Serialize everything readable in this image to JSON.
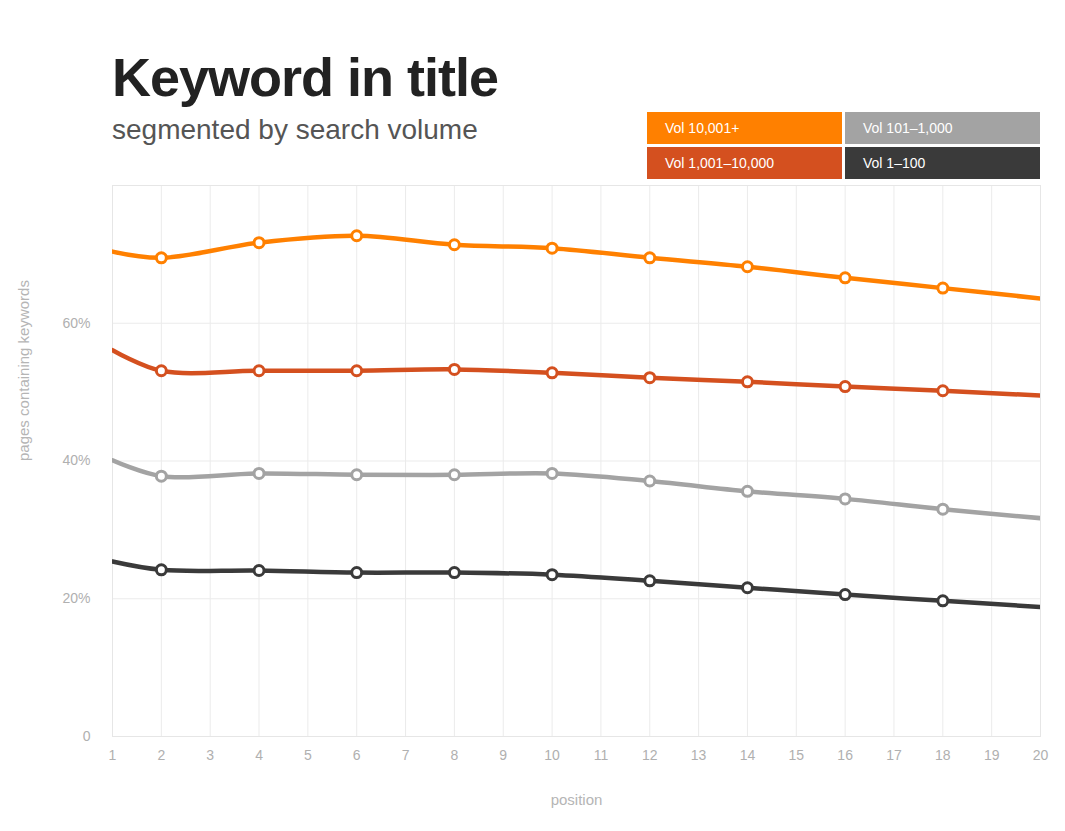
{
  "chart_data": {
    "type": "line",
    "title": "Keyword in title",
    "subtitle": "segmented by search volume",
    "x_label": "position",
    "y_label": "pages containing keywords",
    "x": [
      1,
      2,
      4,
      6,
      8,
      10,
      12,
      14,
      16,
      18,
      20
    ],
    "series": [
      {
        "name": "Vol 10,001+",
        "color": "#ff8000",
        "values": [
          70.4,
          69.5,
          71.7,
          72.7,
          71.4,
          70.9,
          69.5,
          68.2,
          66.6,
          65.1,
          63.6
        ]
      },
      {
        "name": "Vol 1,001–10,000",
        "color": "#d4501f",
        "values": [
          56.1,
          53.1,
          53.1,
          53.1,
          53.3,
          52.8,
          52.1,
          51.5,
          50.8,
          50.2,
          49.5
        ]
      },
      {
        "name": "Vol 101–1,000",
        "color": "#a3a3a3",
        "values": [
          40.1,
          37.8,
          38.2,
          38.0,
          38.0,
          38.2,
          37.1,
          35.6,
          34.5,
          33.0,
          31.7
        ]
      },
      {
        "name": "Vol 1–100",
        "color": "#3a3a3a",
        "values": [
          25.4,
          24.2,
          24.1,
          23.8,
          23.8,
          23.5,
          22.6,
          21.6,
          20.6,
          19.7,
          18.8
        ]
      }
    ],
    "xlim": [
      1,
      20
    ],
    "xticks": [
      1,
      2,
      3,
      4,
      5,
      6,
      7,
      8,
      9,
      10,
      11,
      12,
      13,
      14,
      15,
      16,
      17,
      18,
      19,
      20
    ],
    "ylim": [
      0,
      80
    ],
    "yticks": [
      0,
      {
        "value": 20,
        "label": "20%"
      },
      {
        "value": 40,
        "label": "40%"
      },
      {
        "value": 60,
        "label": "60%"
      }
    ],
    "grid": true,
    "legend": "top-right",
    "marker": "circle"
  }
}
